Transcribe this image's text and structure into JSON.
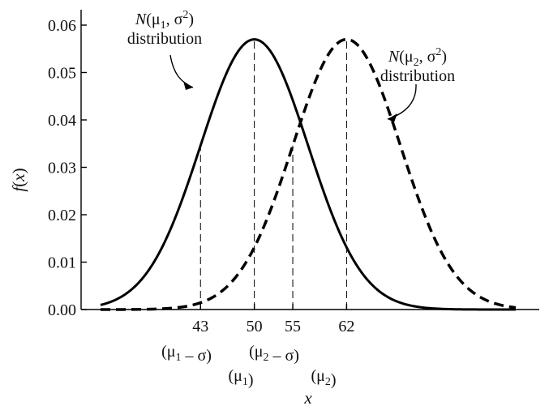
{
  "chart_data": {
    "type": "line",
    "xlabel": "x",
    "ylabel": "f(x)",
    "xlim": [
      30,
      84
    ],
    "ylim": [
      0,
      0.062
    ],
    "ytick_labels": [
      "0.00",
      "0.01",
      "0.02",
      "0.03",
      "0.04",
      "0.05",
      "0.06"
    ],
    "ytick_values": [
      0,
      0.01,
      0.02,
      0.03,
      0.04,
      0.05,
      0.06
    ],
    "xtick_labels": [
      "43",
      "50",
      "55",
      "62"
    ],
    "xtick_values": [
      43,
      50,
      55,
      62
    ],
    "markers": [
      {
        "x": 43,
        "sub": "(μ1 – σ)"
      },
      {
        "x": 50,
        "sub": "(μ1)"
      },
      {
        "x": 55,
        "sub": "(μ2 – σ)"
      },
      {
        "x": 62,
        "sub": "(μ2)"
      }
    ],
    "series": [
      {
        "mean": 50,
        "sd": 7,
        "style": "solid"
      },
      {
        "mean": 62,
        "sd": 7,
        "style": "dashed"
      }
    ],
    "annotations": [
      {
        "label": "N(μ1, σ2)",
        "label_line2": "distribution"
      },
      {
        "label": "N(μ2, σ2)",
        "label_line2": "distribution"
      }
    ],
    "grid": false,
    "legend": "none"
  }
}
